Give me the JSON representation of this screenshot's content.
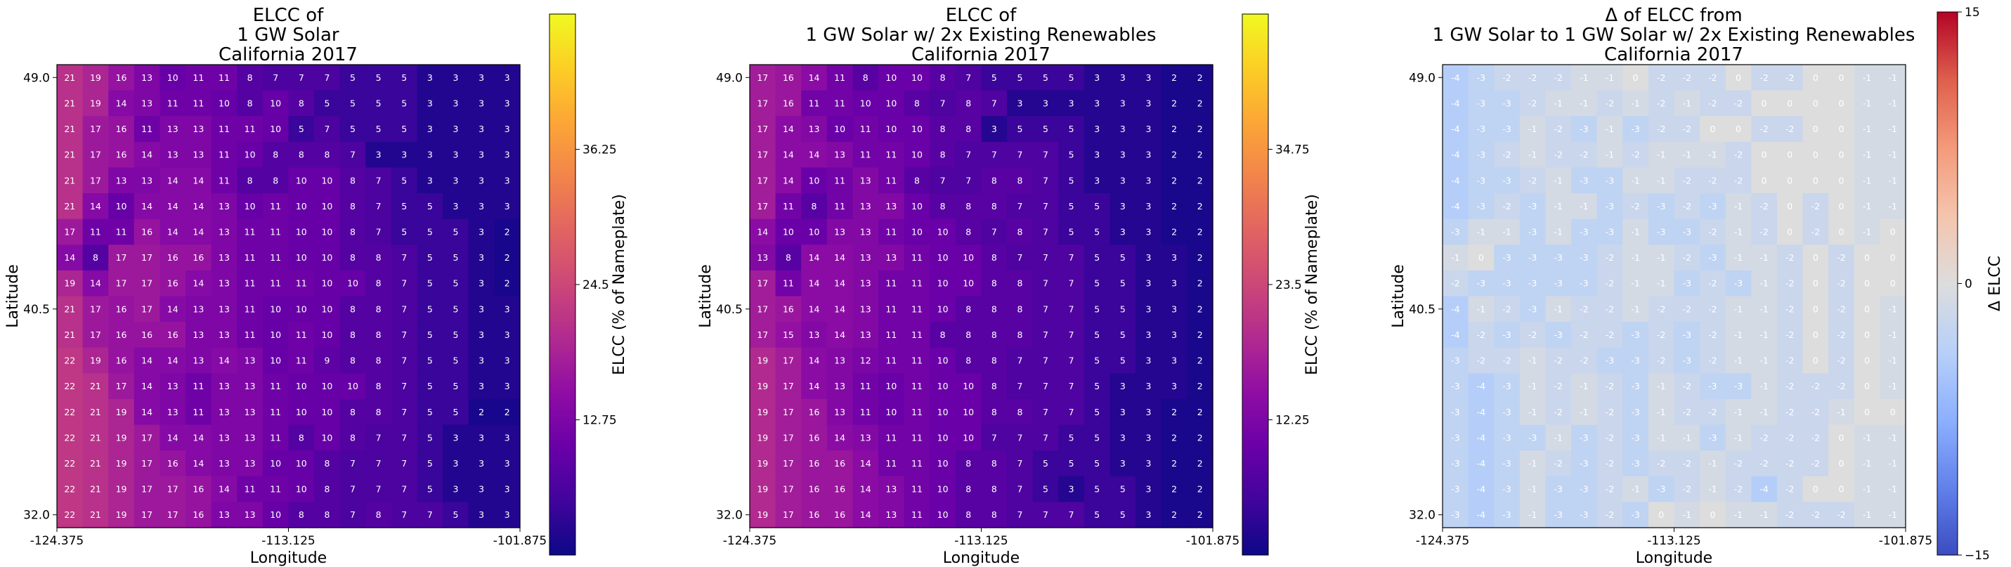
{
  "chart_data": [
    {
      "type": "heatmap",
      "title": [
        "ELCC of",
        "1 GW Solar",
        "California 2017"
      ],
      "xlabel": "Longitude",
      "ylabel": "Latitude",
      "xticks": [
        "-124.375",
        "-113.125",
        "-101.875"
      ],
      "yticks": [
        "49.0",
        "40.5",
        "32.0"
      ],
      "colorbar_label": "ELCC (% of Nameplate)",
      "colorbar_ticks": [
        "12.75",
        "24.5",
        "36.25"
      ],
      "colormap": "plasma",
      "vmin": 1,
      "vmax": 48,
      "rows": [
        [
          21,
          19,
          16,
          13,
          10,
          11,
          11,
          8,
          7,
          7,
          7,
          5,
          5,
          5,
          3,
          3,
          3,
          3
        ],
        [
          21,
          19,
          14,
          13,
          11,
          11,
          10,
          8,
          10,
          8,
          5,
          5,
          5,
          5,
          3,
          3,
          3,
          3
        ],
        [
          21,
          17,
          16,
          11,
          13,
          13,
          11,
          11,
          10,
          5,
          7,
          5,
          5,
          5,
          3,
          3,
          3,
          3
        ],
        [
          21,
          17,
          16,
          14,
          13,
          13,
          11,
          10,
          8,
          8,
          8,
          7,
          3,
          3,
          3,
          3,
          3,
          3
        ],
        [
          21,
          17,
          13,
          13,
          14,
          14,
          11,
          8,
          8,
          10,
          10,
          8,
          7,
          5,
          3,
          3,
          3,
          3
        ],
        [
          21,
          14,
          10,
          14,
          14,
          14,
          13,
          10,
          11,
          10,
          10,
          8,
          7,
          5,
          5,
          3,
          3,
          3
        ],
        [
          17,
          11,
          11,
          16,
          14,
          14,
          13,
          11,
          11,
          10,
          10,
          8,
          7,
          5,
          5,
          5,
          3,
          2
        ],
        [
          14,
          8,
          17,
          17,
          16,
          16,
          13,
          11,
          11,
          10,
          10,
          8,
          8,
          7,
          5,
          5,
          3,
          2
        ],
        [
          19,
          14,
          17,
          17,
          16,
          14,
          13,
          11,
          11,
          11,
          10,
          10,
          8,
          7,
          5,
          5,
          3,
          2
        ],
        [
          21,
          17,
          16,
          17,
          14,
          13,
          13,
          11,
          10,
          10,
          10,
          8,
          8,
          7,
          5,
          5,
          3,
          3
        ],
        [
          21,
          17,
          16,
          16,
          16,
          13,
          13,
          11,
          10,
          11,
          10,
          8,
          8,
          7,
          5,
          5,
          3,
          3
        ],
        [
          22,
          19,
          16,
          14,
          14,
          13,
          14,
          13,
          10,
          11,
          9,
          8,
          8,
          7,
          5,
          5,
          3,
          3
        ],
        [
          22,
          21,
          17,
          14,
          13,
          11,
          13,
          13,
          11,
          10,
          10,
          10,
          8,
          7,
          5,
          5,
          3,
          3
        ],
        [
          22,
          21,
          19,
          14,
          13,
          11,
          13,
          13,
          11,
          10,
          10,
          8,
          8,
          7,
          5,
          5,
          2,
          2
        ],
        [
          22,
          21,
          19,
          17,
          14,
          14,
          13,
          13,
          11,
          8,
          10,
          8,
          7,
          7,
          5,
          3,
          3,
          3
        ],
        [
          22,
          21,
          19,
          17,
          16,
          14,
          13,
          13,
          10,
          10,
          8,
          7,
          7,
          7,
          5,
          3,
          3,
          3
        ],
        [
          22,
          21,
          19,
          17,
          17,
          16,
          14,
          11,
          11,
          10,
          8,
          7,
          7,
          7,
          5,
          3,
          3,
          3
        ],
        [
          22,
          21,
          19,
          17,
          17,
          16,
          13,
          13,
          10,
          8,
          8,
          7,
          8,
          7,
          7,
          5,
          3,
          3
        ]
      ]
    },
    {
      "type": "heatmap",
      "title": [
        "ELCC of",
        "1 GW Solar w/ 2x Existing Renewables",
        "California 2017"
      ],
      "xlabel": "Longitude",
      "ylabel": "Latitude",
      "xticks": [
        "-124.375",
        "-113.125",
        "-101.875"
      ],
      "yticks": [
        "49.0",
        "40.5",
        "32.0"
      ],
      "colorbar_label": "ELCC (% of Nameplate)",
      "colorbar_ticks": [
        "12.25",
        "23.5",
        "34.75"
      ],
      "colormap": "plasma",
      "vmin": 1,
      "vmax": 46,
      "rows": [
        [
          17,
          16,
          14,
          11,
          8,
          10,
          10,
          8,
          7,
          5,
          5,
          5,
          5,
          3,
          3,
          3,
          2,
          2
        ],
        [
          17,
          16,
          11,
          11,
          10,
          10,
          8,
          7,
          8,
          7,
          3,
          3,
          3,
          3,
          3,
          3,
          2,
          2
        ],
        [
          17,
          14,
          13,
          10,
          11,
          10,
          10,
          8,
          8,
          3,
          5,
          5,
          5,
          3,
          3,
          3,
          2,
          2
        ],
        [
          17,
          14,
          14,
          13,
          11,
          11,
          10,
          8,
          7,
          7,
          7,
          7,
          5,
          3,
          3,
          3,
          2,
          2
        ],
        [
          17,
          14,
          10,
          11,
          13,
          11,
          8,
          7,
          7,
          8,
          8,
          7,
          5,
          3,
          3,
          3,
          2,
          2
        ],
        [
          17,
          11,
          8,
          11,
          13,
          13,
          10,
          8,
          8,
          8,
          7,
          7,
          5,
          5,
          3,
          3,
          2,
          2
        ],
        [
          14,
          10,
          10,
          13,
          13,
          11,
          10,
          10,
          8,
          7,
          8,
          7,
          5,
          5,
          3,
          3,
          2,
          2
        ],
        [
          13,
          8,
          14,
          14,
          13,
          13,
          11,
          10,
          10,
          8,
          7,
          7,
          7,
          5,
          5,
          3,
          3,
          2
        ],
        [
          17,
          11,
          14,
          14,
          13,
          11,
          11,
          10,
          10,
          8,
          8,
          7,
          7,
          5,
          5,
          3,
          3,
          2
        ],
        [
          17,
          16,
          14,
          14,
          13,
          11,
          11,
          10,
          8,
          8,
          8,
          7,
          7,
          5,
          5,
          3,
          3,
          2
        ],
        [
          17,
          15,
          13,
          14,
          13,
          11,
          11,
          8,
          8,
          8,
          8,
          7,
          7,
          5,
          5,
          3,
          3,
          2
        ],
        [
          19,
          17,
          14,
          13,
          12,
          11,
          11,
          10,
          8,
          8,
          7,
          7,
          7,
          5,
          5,
          3,
          3,
          2
        ],
        [
          19,
          17,
          14,
          13,
          11,
          10,
          11,
          10,
          10,
          8,
          7,
          7,
          7,
          5,
          3,
          3,
          3,
          2
        ],
        [
          19,
          17,
          16,
          13,
          11,
          10,
          11,
          10,
          10,
          8,
          8,
          7,
          7,
          5,
          3,
          3,
          2,
          2
        ],
        [
          19,
          17,
          16,
          14,
          13,
          11,
          11,
          10,
          10,
          7,
          7,
          7,
          5,
          5,
          3,
          3,
          2,
          2
        ],
        [
          19,
          17,
          16,
          16,
          14,
          11,
          11,
          10,
          8,
          8,
          7,
          5,
          5,
          5,
          3,
          3,
          2,
          2
        ],
        [
          19,
          17,
          16,
          16,
          14,
          13,
          11,
          10,
          8,
          8,
          7,
          5,
          3,
          5,
          5,
          3,
          2,
          2
        ],
        [
          19,
          17,
          16,
          16,
          14,
          13,
          11,
          10,
          8,
          8,
          7,
          7,
          7,
          5,
          5,
          3,
          2,
          2
        ]
      ]
    },
    {
      "type": "heatmap",
      "title": [
        "Δ of ELCC from",
        "1 GW Solar to 1 GW Solar w/ 2x Existing Renewables",
        "California 2017"
      ],
      "xlabel": "Longitude",
      "ylabel": "Latitude",
      "xticks": [
        "-124.375",
        "-113.125",
        "-101.875"
      ],
      "yticks": [
        "49.0",
        "40.5",
        "32.0"
      ],
      "colorbar_label": "Δ ELCC",
      "colorbar_ticks": [
        "−15",
        "0",
        "15"
      ],
      "colormap": "coolwarm",
      "vmin": -15,
      "vmax": 15,
      "rows": [
        [
          -4,
          -3,
          -2,
          -2,
          -2,
          -1,
          -1,
          0,
          -2,
          -2,
          -2,
          0,
          -2,
          -2,
          0,
          0,
          -1,
          -1
        ],
        [
          -4,
          -3,
          -3,
          -2,
          -1,
          -1,
          -2,
          -1,
          -2,
          -1,
          -2,
          -2,
          0,
          0,
          0,
          0,
          -1,
          -1
        ],
        [
          -4,
          -3,
          -3,
          -1,
          -2,
          -3,
          -1,
          -3,
          -2,
          -2,
          0,
          0,
          -2,
          -2,
          0,
          0,
          -1,
          -1
        ],
        [
          -4,
          -3,
          -2,
          -1,
          -2,
          -2,
          -1,
          -2,
          -1,
          -1,
          -1,
          -2,
          0,
          0,
          0,
          0,
          -1,
          -1
        ],
        [
          -4,
          -3,
          -3,
          -2,
          -1,
          -3,
          -3,
          -1,
          -1,
          -2,
          -2,
          -2,
          0,
          0,
          0,
          0,
          -1,
          -1
        ],
        [
          -4,
          -3,
          -2,
          -3,
          -1,
          -1,
          -3,
          -2,
          -3,
          -2,
          -3,
          -1,
          -2,
          0,
          -2,
          0,
          -1,
          -1
        ],
        [
          -3,
          -1,
          -1,
          -3,
          -1,
          -3,
          -3,
          -1,
          -3,
          -3,
          -2,
          -1,
          -2,
          0,
          -2,
          0,
          -1,
          0
        ],
        [
          -1,
          0,
          -3,
          -3,
          -3,
          -3,
          -2,
          -1,
          -1,
          -2,
          -3,
          -1,
          -1,
          -2,
          0,
          -2,
          0,
          0
        ],
        [
          -2,
          -3,
          -3,
          -3,
          -3,
          -3,
          -2,
          -1,
          -1,
          -3,
          -2,
          -3,
          -1,
          -2,
          0,
          -2,
          0,
          0
        ],
        [
          -4,
          -1,
          -2,
          -3,
          -1,
          -2,
          -2,
          -1,
          -2,
          -2,
          -2,
          -1,
          -1,
          -2,
          0,
          -2,
          0,
          -1
        ],
        [
          -4,
          -2,
          -3,
          -2,
          -3,
          -2,
          -2,
          -3,
          -2,
          -3,
          -2,
          -1,
          -1,
          -2,
          0,
          -2,
          0,
          -1
        ],
        [
          -3,
          -2,
          -2,
          -1,
          -2,
          -2,
          -3,
          -3,
          -2,
          -3,
          -2,
          -1,
          -1,
          -2,
          0,
          -2,
          0,
          -1
        ],
        [
          -3,
          -4,
          -3,
          -1,
          -2,
          -1,
          -2,
          -3,
          -1,
          -2,
          -3,
          -3,
          -1,
          -2,
          -2,
          -2,
          0,
          -1
        ],
        [
          -3,
          -4,
          -3,
          -1,
          -2,
          -1,
          -2,
          -3,
          -1,
          -2,
          -2,
          -1,
          -1,
          -2,
          -2,
          -1,
          0,
          0
        ],
        [
          -3,
          -4,
          -3,
          -3,
          -1,
          -3,
          -2,
          -3,
          -1,
          -1,
          -3,
          -1,
          -2,
          -2,
          -2,
          0,
          -1,
          -1
        ],
        [
          -3,
          -4,
          -3,
          -1,
          -2,
          -3,
          -2,
          -3,
          -2,
          -2,
          -1,
          -2,
          -2,
          -2,
          -2,
          0,
          -1,
          -1
        ],
        [
          -3,
          -4,
          -3,
          -1,
          -3,
          -3,
          -2,
          -1,
          -3,
          -2,
          -1,
          -2,
          -4,
          -2,
          0,
          0,
          -1,
          -1
        ],
        [
          -3,
          -4,
          -3,
          -1,
          -3,
          -3,
          -2,
          -3,
          0,
          -1,
          0,
          -1,
          -1,
          -2,
          -2,
          -2,
          -1,
          -1
        ]
      ]
    }
  ]
}
